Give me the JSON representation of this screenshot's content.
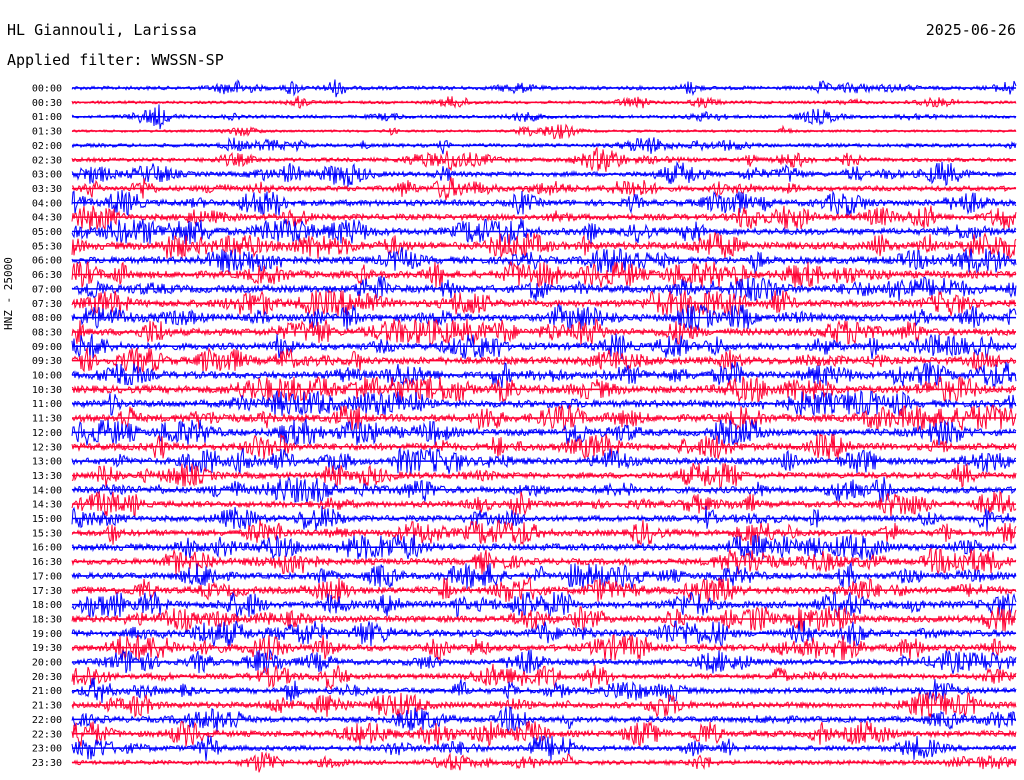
{
  "header": {
    "station": "HL Giannouli, Larissa",
    "date": "2025-06-26",
    "filter": "Applied filter: WWSSN-SP"
  },
  "chart_data": {
    "type": "line",
    "title": "HL Giannouli, Larissa",
    "ylabel": "HNZ - 25000",
    "grid": false,
    "trace_colors": [
      "#0000ff",
      "#ff0033"
    ],
    "rows": [
      {
        "time": "00:00",
        "activity": 1.0
      },
      {
        "time": "00:30",
        "activity": 0.7
      },
      {
        "time": "01:00",
        "activity": 0.8
      },
      {
        "time": "01:30",
        "activity": 0.5
      },
      {
        "time": "02:00",
        "activity": 1.0
      },
      {
        "time": "02:30",
        "activity": 1.1
      },
      {
        "time": "03:00",
        "activity": 1.5
      },
      {
        "time": "03:30",
        "activity": 1.6
      },
      {
        "time": "04:00",
        "activity": 2.0
      },
      {
        "time": "04:30",
        "activity": 2.0
      },
      {
        "time": "05:00",
        "activity": 2.3
      },
      {
        "time": "05:30",
        "activity": 2.6
      },
      {
        "time": "06:00",
        "activity": 2.4
      },
      {
        "time": "06:30",
        "activity": 2.5
      },
      {
        "time": "07:00",
        "activity": 2.6
      },
      {
        "time": "07:30",
        "activity": 2.5
      },
      {
        "time": "08:00",
        "activity": 2.4
      },
      {
        "time": "08:30",
        "activity": 2.4
      },
      {
        "time": "09:00",
        "activity": 2.3
      },
      {
        "time": "09:30",
        "activity": 2.5
      },
      {
        "time": "10:00",
        "activity": 2.4
      },
      {
        "time": "10:30",
        "activity": 2.6
      },
      {
        "time": "11:00",
        "activity": 2.5
      },
      {
        "time": "11:30",
        "activity": 2.5
      },
      {
        "time": "12:00",
        "activity": 2.3
      },
      {
        "time": "12:30",
        "activity": 2.4
      },
      {
        "time": "13:00",
        "activity": 2.2
      },
      {
        "time": "13:30",
        "activity": 2.0
      },
      {
        "time": "14:00",
        "activity": 2.2
      },
      {
        "time": "14:30",
        "activity": 2.0
      },
      {
        "time": "15:00",
        "activity": 1.9
      },
      {
        "time": "15:30",
        "activity": 2.1
      },
      {
        "time": "16:00",
        "activity": 2.3
      },
      {
        "time": "16:30",
        "activity": 2.1
      },
      {
        "time": "17:00",
        "activity": 2.0
      },
      {
        "time": "17:30",
        "activity": 2.3
      },
      {
        "time": "18:00",
        "activity": 2.4
      },
      {
        "time": "18:30",
        "activity": 2.2
      },
      {
        "time": "19:00",
        "activity": 2.3
      },
      {
        "time": "19:30",
        "activity": 2.1
      },
      {
        "time": "20:00",
        "activity": 1.7
      },
      {
        "time": "20:30",
        "activity": 1.6
      },
      {
        "time": "21:00",
        "activity": 1.8
      },
      {
        "time": "21:30",
        "activity": 2.0
      },
      {
        "time": "22:00",
        "activity": 1.9
      },
      {
        "time": "22:30",
        "activity": 2.0
      },
      {
        "time": "23:00",
        "activity": 1.6
      },
      {
        "time": "23:30",
        "activity": 1.3
      }
    ]
  }
}
